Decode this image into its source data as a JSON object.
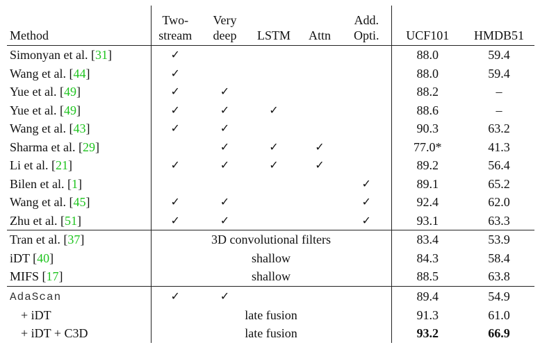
{
  "table": {
    "headers": {
      "method": "Method",
      "two_stream_top": "Two-",
      "two_stream_bottom": "stream",
      "very_deep_top": "Very",
      "very_deep_bottom": "deep",
      "lstm": "LSTM",
      "attn": "Attn",
      "add_opti_top": "Add.",
      "add_opti_bottom": "Opti.",
      "ucf101": "UCF101",
      "hmdb51": "HMDB51"
    },
    "check_mark": "✓",
    "group1": [
      {
        "name": "Simonyan et al. [",
        "ref": "31",
        "close": "]",
        "two_stream": "✓",
        "very_deep": "",
        "lstm": "",
        "attn": "",
        "add_opti": "",
        "ucf101": "88.0",
        "hmdb51": "59.4"
      },
      {
        "name": "Wang et al. [",
        "ref": "44",
        "close": "]",
        "two_stream": "✓",
        "very_deep": "",
        "lstm": "",
        "attn": "",
        "add_opti": "",
        "ucf101": "88.0",
        "hmdb51": "59.4"
      },
      {
        "name": "Yue et al. [",
        "ref": "49",
        "close": "]",
        "two_stream": "✓",
        "very_deep": "✓",
        "lstm": "",
        "attn": "",
        "add_opti": "",
        "ucf101": "88.2",
        "hmdb51": "–"
      },
      {
        "name": "Yue et al. [",
        "ref": "49",
        "close": "]",
        "two_stream": "✓",
        "very_deep": "✓",
        "lstm": "✓",
        "attn": "",
        "add_opti": "",
        "ucf101": "88.6",
        "hmdb51": "–"
      },
      {
        "name": "Wang et al. [",
        "ref": "43",
        "close": "]",
        "two_stream": "✓",
        "very_deep": "✓",
        "lstm": "",
        "attn": "",
        "add_opti": "",
        "ucf101": "90.3",
        "hmdb51": "63.2"
      },
      {
        "name": "Sharma et al. [",
        "ref": "29",
        "close": "]",
        "two_stream": "",
        "very_deep": "✓",
        "lstm": "✓",
        "attn": "✓",
        "add_opti": "",
        "ucf101": "77.0*",
        "hmdb51": "41.3"
      },
      {
        "name": "Li et al. [",
        "ref": "21",
        "close": "]",
        "two_stream": "✓",
        "very_deep": "✓",
        "lstm": "✓",
        "attn": "✓",
        "add_opti": "",
        "ucf101": "89.2",
        "hmdb51": "56.4"
      },
      {
        "name": "Bilen et al. [",
        "ref": "1",
        "close": "]",
        "two_stream": "",
        "very_deep": "",
        "lstm": "",
        "attn": "",
        "add_opti": "✓",
        "ucf101": "89.1",
        "hmdb51": "65.2"
      },
      {
        "name": "Wang et al. [",
        "ref": "45",
        "close": "]",
        "two_stream": "✓",
        "very_deep": "✓",
        "lstm": "",
        "attn": "",
        "add_opti": "✓",
        "ucf101": "92.4",
        "hmdb51": "62.0"
      },
      {
        "name": "Zhu et al. [",
        "ref": "51",
        "close": "]",
        "two_stream": "✓",
        "very_deep": "✓",
        "lstm": "",
        "attn": "",
        "add_opti": "✓",
        "ucf101": "93.1",
        "hmdb51": "63.3"
      }
    ],
    "group2": [
      {
        "name": "Tran et al. [",
        "ref": "37",
        "close": "]",
        "span_text": "3D convolutional filters",
        "ucf101": "83.4",
        "hmdb51": "53.9"
      },
      {
        "name": "iDT [",
        "ref": "40",
        "close": "]",
        "span_text": "shallow",
        "ucf101": "84.3",
        "hmdb51": "58.4"
      },
      {
        "name": "MIFS [",
        "ref": "17",
        "close": "]",
        "span_text": "shallow",
        "ucf101": "88.5",
        "hmdb51": "63.8"
      }
    ],
    "group3": {
      "adascan": {
        "name": "AdaScan",
        "two_stream": "✓",
        "very_deep": "✓",
        "ucf101": "89.4",
        "hmdb51": "54.9"
      },
      "idt": {
        "name": "+ iDT",
        "span_text": "late fusion",
        "ucf101": "91.3",
        "hmdb51": "61.0"
      },
      "idt_c3d": {
        "name": "+ iDT + C3D",
        "span_text": "late fusion",
        "ucf101": "93.2",
        "hmdb51": "66.9"
      }
    }
  }
}
